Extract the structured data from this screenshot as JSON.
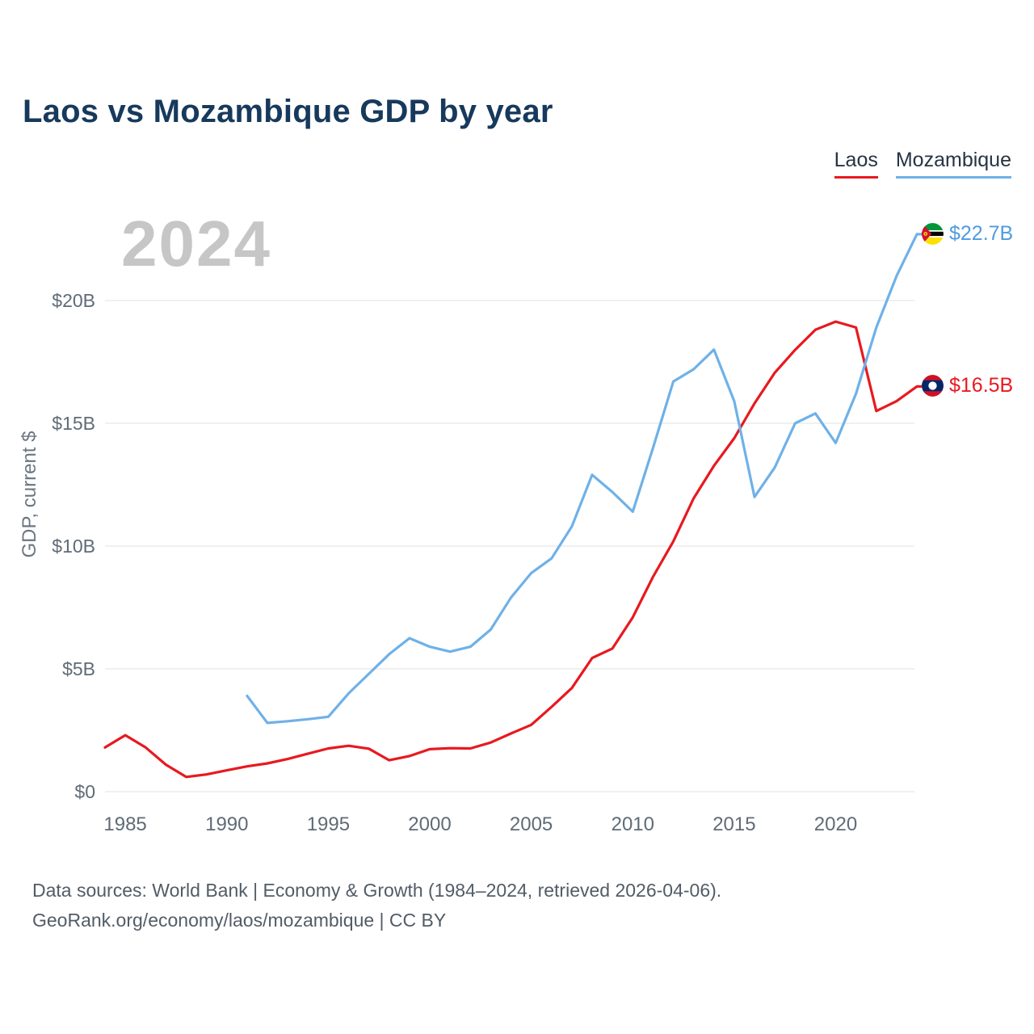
{
  "title": "Laos vs Mozambique GDP by year",
  "watermark": "2024",
  "legend": {
    "laos": {
      "label": "Laos",
      "color": "#e8191f"
    },
    "mozambique": {
      "label": "Mozambique",
      "color": "#6fb1e8"
    }
  },
  "end_labels": {
    "mozambique": "$22.7B",
    "laos": "$16.5B"
  },
  "footer": {
    "line1": "Data sources: World Bank | Economy & Growth (1984–2024, retrieved 2026-04-06).",
    "line2": "GeoRank.org/economy/laos/mozambique | CC BY"
  },
  "chart_data": {
    "type": "line",
    "title": "Laos vs Mozambique GDP by year",
    "xlabel": "",
    "ylabel": "GDP, current $",
    "unit": "billions of current US$",
    "grid": "horizontal",
    "legend_position": "top-right",
    "xlim": [
      1984,
      2024
    ],
    "ylim": [
      0,
      23.5
    ],
    "x_tick_labels": [
      1985,
      1990,
      1995,
      2000,
      2005,
      2010,
      2015,
      2020
    ],
    "y_tick_values": [
      0,
      5,
      10,
      15,
      20
    ],
    "y_tick_labels": [
      "$0",
      "$5B",
      "$10B",
      "$15B",
      "$20B"
    ],
    "series": [
      {
        "name": "Laos",
        "color": "#e8191f",
        "x": [
          1984,
          1985,
          1986,
          1987,
          1988,
          1989,
          1990,
          1991,
          1992,
          1993,
          1994,
          1995,
          1996,
          1997,
          1998,
          1999,
          2000,
          2001,
          2002,
          2003,
          2004,
          2005,
          2006,
          2007,
          2008,
          2009,
          2010,
          2011,
          2012,
          2013,
          2014,
          2015,
          2016,
          2017,
          2018,
          2019,
          2020,
          2021,
          2022,
          2023,
          2024
        ],
        "values": [
          1.8,
          2.3,
          1.8,
          1.1,
          0.6,
          0.7,
          0.87,
          1.03,
          1.15,
          1.33,
          1.55,
          1.76,
          1.87,
          1.75,
          1.28,
          1.45,
          1.73,
          1.77,
          1.76,
          2.0,
          2.37,
          2.72,
          3.45,
          4.22,
          5.44,
          5.83,
          7.1,
          8.75,
          10.19,
          11.94,
          13.27,
          14.39,
          15.81,
          17.06,
          17.99,
          18.81,
          19.14,
          18.9,
          15.5,
          15.9,
          16.5
        ]
      },
      {
        "name": "Mozambique",
        "color": "#6fb1e8",
        "x": [
          1991,
          1992,
          1993,
          1994,
          1995,
          1996,
          1997,
          1998,
          1999,
          2000,
          2001,
          2002,
          2003,
          2004,
          2005,
          2006,
          2007,
          2008,
          2009,
          2010,
          2011,
          2012,
          2013,
          2014,
          2015,
          2016,
          2017,
          2018,
          2019,
          2020,
          2021,
          2022,
          2023,
          2024
        ],
        "values": [
          3.9,
          2.8,
          2.87,
          2.95,
          3.05,
          4.0,
          4.8,
          5.6,
          6.25,
          5.9,
          5.7,
          5.9,
          6.6,
          7.9,
          8.9,
          9.5,
          10.8,
          12.9,
          12.2,
          11.4,
          14.0,
          16.7,
          17.2,
          18.0,
          15.9,
          12.0,
          13.2,
          15.0,
          15.4,
          14.2,
          16.2,
          18.9,
          21.0,
          22.7
        ]
      }
    ]
  }
}
